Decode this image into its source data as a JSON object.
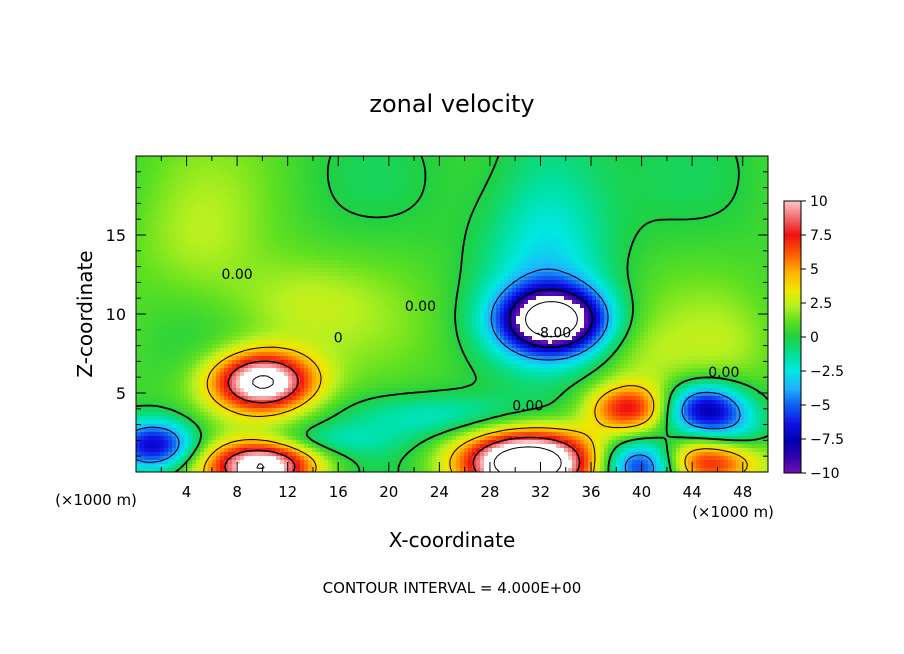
{
  "chart_data": {
    "type": "heatmap",
    "title": "zonal velocity",
    "xlabel": "X-coordinate",
    "ylabel": "Z-coordinate",
    "x_unit": "(×1000 m)",
    "x_unit_right": "(×1000 m)",
    "xlim": [
      0,
      50
    ],
    "ylim": [
      0,
      20
    ],
    "x_ticks": [
      4,
      8,
      12,
      16,
      20,
      24,
      28,
      32,
      36,
      40,
      44,
      48
    ],
    "x_tick_labels": [
      "4",
      "8",
      "12",
      "16",
      "20",
      "24",
      "28",
      "32",
      "36",
      "40",
      "44",
      "48"
    ],
    "y_ticks": [
      5,
      10,
      15
    ],
    "y_tick_labels": [
      "5",
      "10",
      "15"
    ],
    "colorbar": {
      "range": [
        -10,
        10
      ],
      "ticks": [
        10,
        7.5,
        5,
        2.5,
        0,
        -2.5,
        -5,
        -7.5,
        -10
      ],
      "tick_labels": [
        "10",
        "7.5",
        "5",
        "2.5",
        "0",
        "−2.5",
        "−5",
        "−7.5",
        "−10"
      ]
    },
    "contour_labels": [
      {
        "text": "0.00",
        "x": 8,
        "z": 12.2
      },
      {
        "text": "0.00",
        "x": 22.5,
        "z": 10.2
      },
      {
        "text": "0",
        "x": 16,
        "z": 8.2
      },
      {
        "text": "0.00",
        "x": 31,
        "z": 3.9
      },
      {
        "text": "0.00",
        "x": 46.5,
        "z": 6.0
      },
      {
        "text": "-8.00",
        "x": 33,
        "z": 8.5
      }
    ],
    "features": [
      {
        "type": "max",
        "x": 10,
        "z": 5.7,
        "value": 12
      },
      {
        "type": "max",
        "x": 31,
        "z": 0.6,
        "value": 14
      },
      {
        "type": "max",
        "x": 10,
        "z": 0.4,
        "value": 11
      },
      {
        "type": "max",
        "x": 39,
        "z": 4.0,
        "value": 7
      },
      {
        "type": "max",
        "x": 45,
        "z": 0.6,
        "value": 8
      },
      {
        "type": "min",
        "x": 33,
        "z": 9.6,
        "value": -13
      },
      {
        "type": "min",
        "x": 45,
        "z": 4.0,
        "value": -8
      },
      {
        "type": "min",
        "x": 1.5,
        "z": 1.7,
        "value": -8
      },
      {
        "type": "min",
        "x": 40,
        "z": 0.4,
        "value": -8
      }
    ],
    "footer": "CONTOUR INTERVAL = 4.000E+00"
  }
}
